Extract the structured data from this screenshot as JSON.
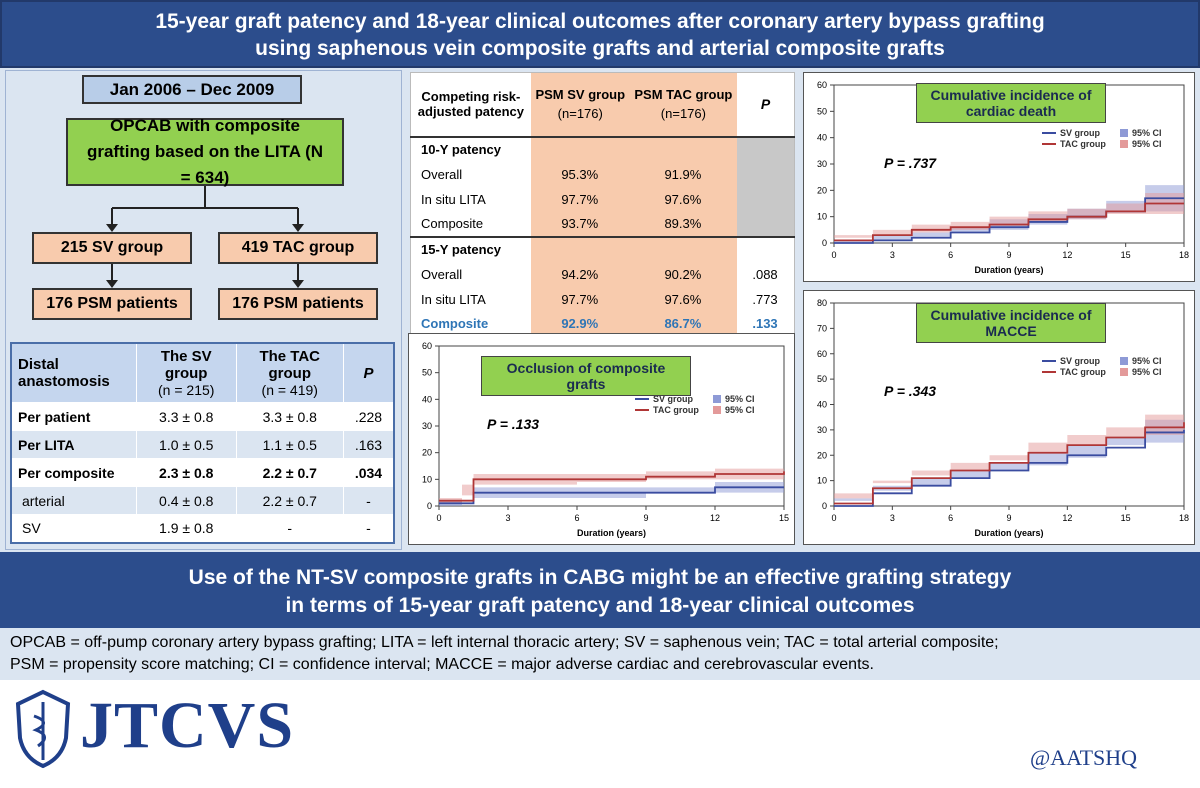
{
  "header": {
    "title_lines": [
      "15-year graft patency and 18-year clinical outcomes after coronary artery bypass grafting",
      "using saphenous vein composite grafts and arterial composite grafts"
    ]
  },
  "flow": {
    "period": "Jan 2006 – Dec 2009",
    "cohort": "OPCAB with composite grafting based on the LITA (N = 634)",
    "groups": [
      "215 SV group",
      "419 TAC group"
    ],
    "matched": [
      "176 PSM patients",
      "176 PSM patients"
    ]
  },
  "anastomosis_table": {
    "header": [
      {
        "label": "Distal anastomosis"
      },
      {
        "label": "The SV group",
        "sub": "(n = 215)"
      },
      {
        "label": "The TAC group",
        "sub": "(n = 419)"
      },
      {
        "label": "P"
      }
    ],
    "rows": [
      [
        "Per patient",
        "3.3 ± 0.8",
        "3.3 ± 0.8",
        ".228"
      ],
      [
        "Per LITA",
        "1.0 ± 0.5",
        "1.1 ± 0.5",
        ".163"
      ],
      [
        "Per composite",
        "2.3 ± 0.8",
        "2.2 ± 0.7",
        ".034"
      ],
      [
        "arterial",
        "0.4 ± 0.8",
        "2.2 ± 0.7",
        "-"
      ],
      [
        "SV",
        "1.9 ± 0.8",
        "-",
        "-"
      ]
    ]
  },
  "patency_table": {
    "header": [
      {
        "label": "Competing risk-adjusted patency"
      },
      {
        "label": "PSM SV group",
        "sub": "(n=176)"
      },
      {
        "label": "PSM TAC group",
        "sub": "(n=176)"
      },
      {
        "label": "P"
      }
    ],
    "sections": [
      {
        "title": "10-Y patency",
        "rows": [
          [
            "Overall",
            "95.3%",
            "91.9%",
            null
          ],
          [
            "In situ LITA",
            "97.7%",
            "97.6%",
            null
          ],
          [
            "Composite",
            "93.7%",
            "89.3%",
            null
          ]
        ]
      },
      {
        "title": "15-Y patency",
        "rows": [
          [
            "Overall",
            "94.2%",
            "90.2%",
            ".088"
          ],
          [
            "In situ LITA",
            "97.7%",
            "97.6%",
            ".773"
          ],
          [
            "Composite",
            "92.9%",
            "86.7%",
            ".133"
          ]
        ]
      }
    ]
  },
  "chart_data": [
    {
      "type": "line",
      "title": "Cumulative incidence of cardiac death",
      "annotation": "P = .737",
      "x_label": "Duration (years)",
      "xlim": [
        0,
        18
      ],
      "xticks": [
        0,
        3,
        6,
        9,
        12,
        15,
        18
      ],
      "ylim": [
        0,
        60
      ],
      "yticks": [
        0,
        10,
        20,
        30,
        40,
        50,
        60
      ],
      "x": [
        0,
        2,
        4,
        6,
        8,
        10,
        12,
        14,
        16,
        18
      ],
      "series": [
        {
          "name": "SV   group",
          "color": "#3a4ca0",
          "ci_color": "#8e9ad6",
          "ci_label": "95% CI",
          "values": [
            0,
            1,
            2,
            4,
            6,
            8,
            10,
            12,
            17,
            17
          ],
          "ci_lower": [
            0,
            0,
            1,
            2,
            4,
            5,
            7,
            9,
            12,
            12
          ],
          "ci_upper": [
            1,
            3,
            4,
            6,
            9,
            11,
            13,
            16,
            22,
            22
          ]
        },
        {
          "name": "TAC group",
          "color": "#b03636",
          "ci_color": "#e39a9a",
          "ci_label": "95% CI",
          "values": [
            1,
            3,
            5,
            6,
            7,
            9,
            10,
            12,
            15,
            15
          ],
          "ci_lower": [
            0,
            2,
            3,
            4,
            5,
            7,
            8,
            9,
            11,
            11
          ],
          "ci_upper": [
            3,
            5,
            7,
            8,
            10,
            12,
            13,
            15,
            19,
            19
          ]
        }
      ]
    },
    {
      "type": "line",
      "title": "Cumulative incidence of MACCE",
      "annotation": "P = .343",
      "x_label": "Duration (years)",
      "xlim": [
        0,
        18
      ],
      "xticks": [
        0,
        3,
        6,
        9,
        12,
        15,
        18
      ],
      "ylim": [
        0,
        80
      ],
      "yticks": [
        0,
        10,
        20,
        30,
        40,
        50,
        60,
        70,
        80
      ],
      "x": [
        0,
        2,
        4,
        6,
        8,
        10,
        12,
        14,
        16,
        18
      ],
      "series": [
        {
          "name": "SV   group",
          "color": "#3a4ca0",
          "ci_color": "#8e9ad6",
          "ci_label": "95% CI",
          "values": [
            0,
            5,
            8,
            11,
            14,
            17,
            20,
            23,
            29,
            30
          ],
          "ci_lower": [
            0,
            3,
            6,
            8,
            11,
            14,
            16,
            19,
            24,
            25
          ],
          "ci_upper": [
            2,
            8,
            11,
            14,
            17,
            21,
            24,
            27,
            34,
            35
          ]
        },
        {
          "name": "TAC group",
          "color": "#b03636",
          "ci_color": "#e39a9a",
          "ci_label": "95% CI",
          "values": [
            1,
            7,
            11,
            14,
            17,
            21,
            24,
            27,
            31,
            33
          ],
          "ci_lower": [
            0,
            5,
            9,
            12,
            14,
            18,
            21,
            24,
            27,
            28
          ],
          "ci_upper": [
            3,
            10,
            14,
            17,
            20,
            25,
            28,
            31,
            36,
            40
          ]
        }
      ]
    },
    {
      "type": "line",
      "title": "Occlusion of composite grafts",
      "annotation": "P = .133",
      "x_label": "Duration (years)",
      "xlim": [
        0,
        15
      ],
      "xticks": [
        0,
        3,
        6,
        9,
        12,
        15
      ],
      "ylim": [
        0,
        60
      ],
      "yticks": [
        0,
        10,
        20,
        30,
        40,
        50,
        60
      ],
      "x": [
        0,
        1,
        1.5,
        3,
        6,
        9,
        12,
        15
      ],
      "series": [
        {
          "name": "SV   group",
          "color": "#3a4ca0",
          "ci_color": "#8e9ad6",
          "ci_label": "95% CI",
          "values": [
            1,
            1,
            5,
            5,
            5,
            5,
            7,
            7
          ],
          "ci_lower": [
            0,
            0,
            3,
            3,
            3,
            3,
            5,
            5
          ],
          "ci_upper": [
            2,
            3,
            7,
            7,
            7,
            7,
            9,
            9
          ]
        },
        {
          "name": "TAC group",
          "color": "#b03636",
          "ci_color": "#e39a9a",
          "ci_label": "95% CI",
          "values": [
            2,
            2,
            10,
            10,
            10,
            11,
            12,
            13
          ],
          "ci_lower": [
            1,
            1,
            8,
            8,
            8,
            9,
            10,
            10
          ],
          "ci_upper": [
            3,
            4,
            12,
            12,
            12,
            13,
            14,
            16
          ]
        }
      ]
    }
  ],
  "conclusion": {
    "lines": [
      "Use of the NT-SV composite grafts in CABG might be an effective grafting strategy",
      "in terms of 15-year graft patency and 18-year clinical outcomes"
    ]
  },
  "abbreviations": {
    "lines": [
      "OPCAB = off-pump coronary artery bypass grafting; LITA = left internal thoracic artery;  SV = saphenous vein; TAC = total arterial composite;",
      "PSM = propensity score matching; CI = confidence interval; MACCE = major adverse cardiac and cerebrovascular events."
    ]
  },
  "footer": {
    "journal": "JTCVS",
    "handle": "@AATSHQ"
  }
}
